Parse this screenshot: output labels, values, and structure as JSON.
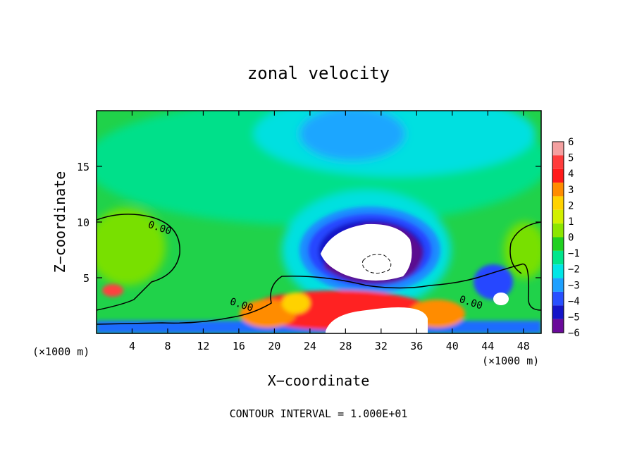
{
  "chart_data": {
    "type": "heatmap",
    "title": "zonal velocity",
    "xlabel": "X−coordinate",
    "ylabel": "Z−coordinate",
    "x_unit_label": "(×1000 m)",
    "x_unit_label_right": "(×1000 m)",
    "xlim": [
      0,
      50
    ],
    "ylim": [
      0,
      20
    ],
    "x_ticks": [
      4,
      8,
      12,
      16,
      20,
      24,
      28,
      32,
      36,
      40,
      44,
      48
    ],
    "y_ticks": [
      5,
      10,
      15
    ],
    "contour_interval_text": "CONTOUR INTERVAL = 1.000E+01",
    "contour_labels": [
      {
        "text": "0.00",
        "x": 7.0,
        "y": 9.2
      },
      {
        "text": "0.00",
        "x": 16.2,
        "y": 2.3
      },
      {
        "text": "0.00",
        "x": 42.0,
        "y": 2.5
      }
    ],
    "colorbar": {
      "levels": [
        6,
        5,
        4,
        3,
        2,
        1,
        0,
        -1,
        -2,
        -3,
        -4,
        -5,
        -6
      ],
      "colors": [
        "#f4a0a0",
        "#ff3c3c",
        "#ff1a1a",
        "#ff8c00",
        "#ffd200",
        "#d2f000",
        "#8ce600",
        "#20d020",
        "#00e68c",
        "#00e6e6",
        "#1ea0ff",
        "#2850ff",
        "#1414c8",
        "#6a0a9a"
      ]
    },
    "field_features": [
      {
        "name": "background",
        "value": -0.5,
        "description": "green/cyan fill"
      },
      {
        "name": "upper negative core",
        "x": 31,
        "z": 17,
        "value": -3
      },
      {
        "name": "central strong negative jet",
        "x": 30.5,
        "z": 7.5,
        "value": -6
      },
      {
        "name": "near-surface positive band",
        "x": 31,
        "z": 2,
        "value": 5
      },
      {
        "name": "right negative eddy",
        "x": 45.5,
        "z": 3.2,
        "value": -6
      }
    ]
  }
}
